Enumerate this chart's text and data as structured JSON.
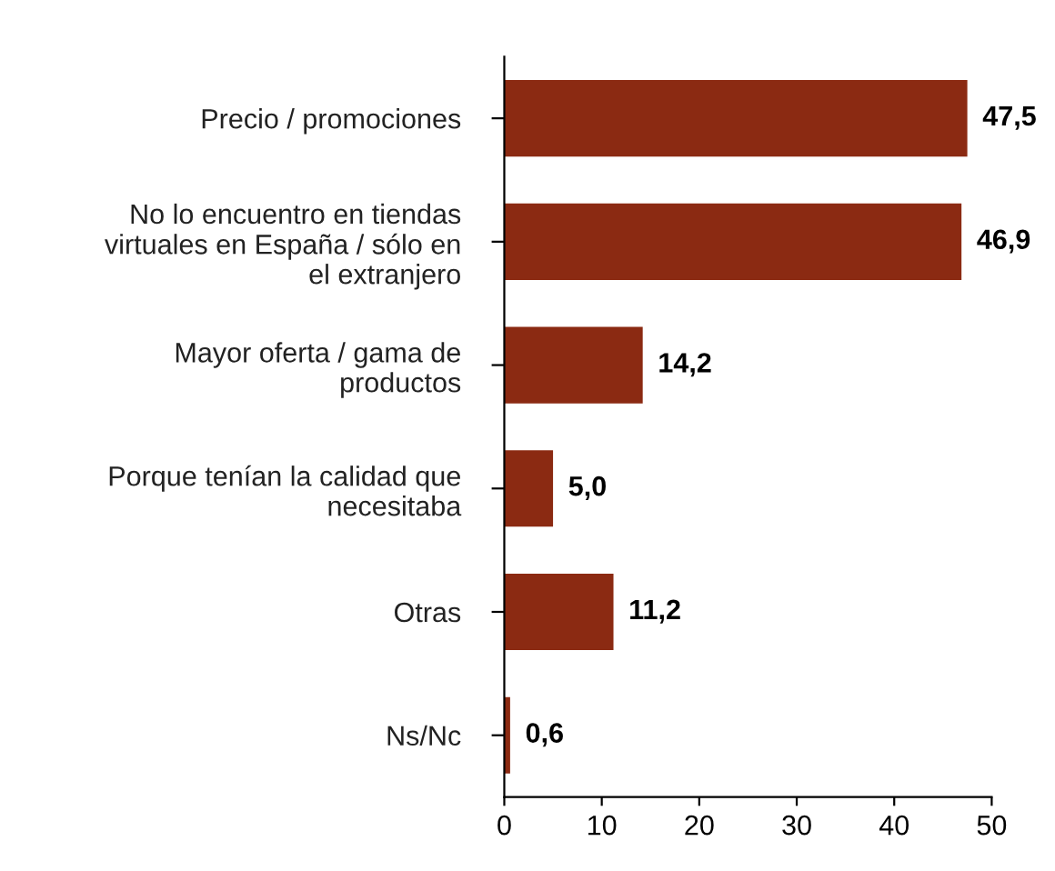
{
  "chart_data": {
    "type": "bar",
    "orientation": "horizontal",
    "categories": [
      "Precio / promociones",
      "No lo encuentro en tiendas\nvirtuales en España / sólo en\nel extranjero",
      "Mayor oferta / gama de\nproductos",
      "Porque tenían la calidad que\nnecesitaba",
      "Otras",
      "Ns/Nc"
    ],
    "values": [
      47.5,
      46.9,
      14.2,
      5.0,
      11.2,
      0.6
    ],
    "value_labels": [
      "47,5",
      "46,9",
      "14,2",
      "5,0",
      "11,2",
      "0,6"
    ],
    "color": "#8b2a12",
    "xlim": [
      0,
      50
    ],
    "xticks": [
      0,
      10,
      20,
      30,
      40,
      50
    ],
    "grid": false,
    "legend": false
  }
}
